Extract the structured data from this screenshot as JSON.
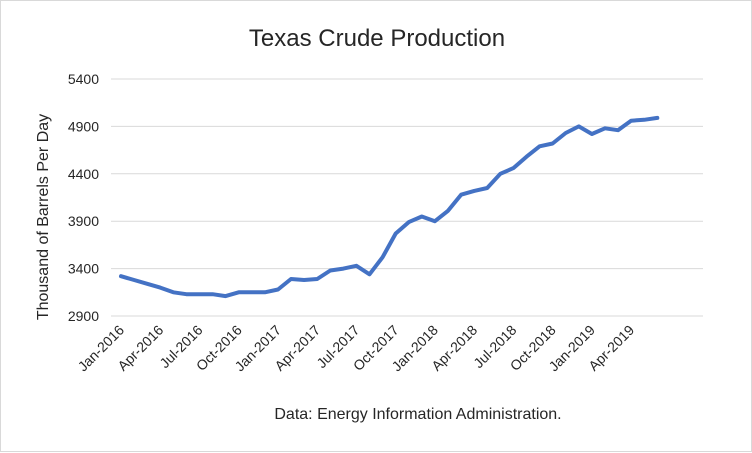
{
  "chart_data": {
    "type": "line",
    "title": "Texas Crude Production",
    "xlabel": "",
    "ylabel": "Thousand of Barrels Per Day",
    "source_note": "Data: Energy Information Administration.",
    "ylim": [
      2900,
      5400
    ],
    "yticks": [
      2900,
      3400,
      3900,
      4400,
      4900,
      5400
    ],
    "xtick_labels": [
      "Jan-2016",
      "Apr-2016",
      "Jul-2016",
      "Oct-2016",
      "Jan-2017",
      "Apr-2017",
      "Jul-2017",
      "Oct-2017",
      "Jan-2018",
      "Apr-2018",
      "Jul-2018",
      "Oct-2018",
      "Jan-2019",
      "Apr-2019"
    ],
    "grid": true,
    "legend": "none",
    "series": [
      {
        "color": "#4472c4",
        "x": [
          "Jan-2016",
          "Feb-2016",
          "Mar-2016",
          "Apr-2016",
          "May-2016",
          "Jun-2016",
          "Jul-2016",
          "Aug-2016",
          "Sep-2016",
          "Oct-2016",
          "Nov-2016",
          "Dec-2016",
          "Jan-2017",
          "Feb-2017",
          "Mar-2017",
          "Apr-2017",
          "May-2017",
          "Jun-2017",
          "Jul-2017",
          "Aug-2017",
          "Sep-2017",
          "Oct-2017",
          "Nov-2017",
          "Dec-2017",
          "Jan-2018",
          "Feb-2018",
          "Mar-2018",
          "Apr-2018",
          "May-2018",
          "Jun-2018",
          "Jul-2018",
          "Aug-2018",
          "Sep-2018",
          "Oct-2018",
          "Nov-2018",
          "Dec-2018",
          "Jan-2019",
          "Feb-2019",
          "Mar-2019",
          "Apr-2019",
          "May-2019",
          "Jun-2019"
        ],
        "values": [
          3320,
          3280,
          3240,
          3200,
          3150,
          3130,
          3130,
          3130,
          3110,
          3150,
          3150,
          3150,
          3180,
          3290,
          3280,
          3290,
          3380,
          3400,
          3430,
          3340,
          3520,
          3770,
          3890,
          3950,
          3900,
          4010,
          4180,
          4220,
          4250,
          4400,
          4460,
          4580,
          4690,
          4720,
          4830,
          4900,
          4820,
          4880,
          4860,
          4960,
          4970,
          4990
        ]
      }
    ]
  }
}
